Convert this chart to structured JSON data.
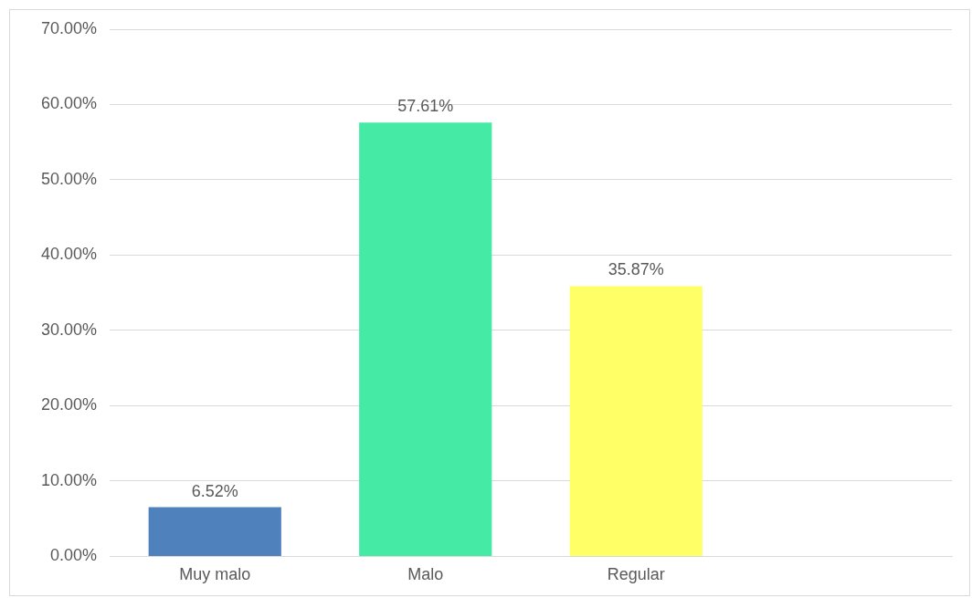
{
  "chart_data": {
    "type": "bar",
    "categories": [
      "Muy malo",
      "Malo",
      "Regular",
      null
    ],
    "values": [
      6.52,
      57.61,
      35.87,
      null
    ],
    "colors": [
      "#4f81bd",
      "#45eba5",
      "#ffff66",
      null
    ],
    "value_labels": [
      "6.52%",
      "57.61%",
      "35.87%",
      null
    ],
    "ylim": [
      0,
      70
    ],
    "yticks": [
      {
        "value": 0,
        "label": "0.00%"
      },
      {
        "value": 10,
        "label": "10.00%"
      },
      {
        "value": 20,
        "label": "20.00%"
      },
      {
        "value": 30,
        "label": "30.00%"
      },
      {
        "value": 40,
        "label": "40.00%"
      },
      {
        "value": 50,
        "label": "50.00%"
      },
      {
        "value": 60,
        "label": "60.00%"
      },
      {
        "value": 70,
        "label": "70.00%"
      }
    ],
    "grid": "y",
    "legend": false
  }
}
